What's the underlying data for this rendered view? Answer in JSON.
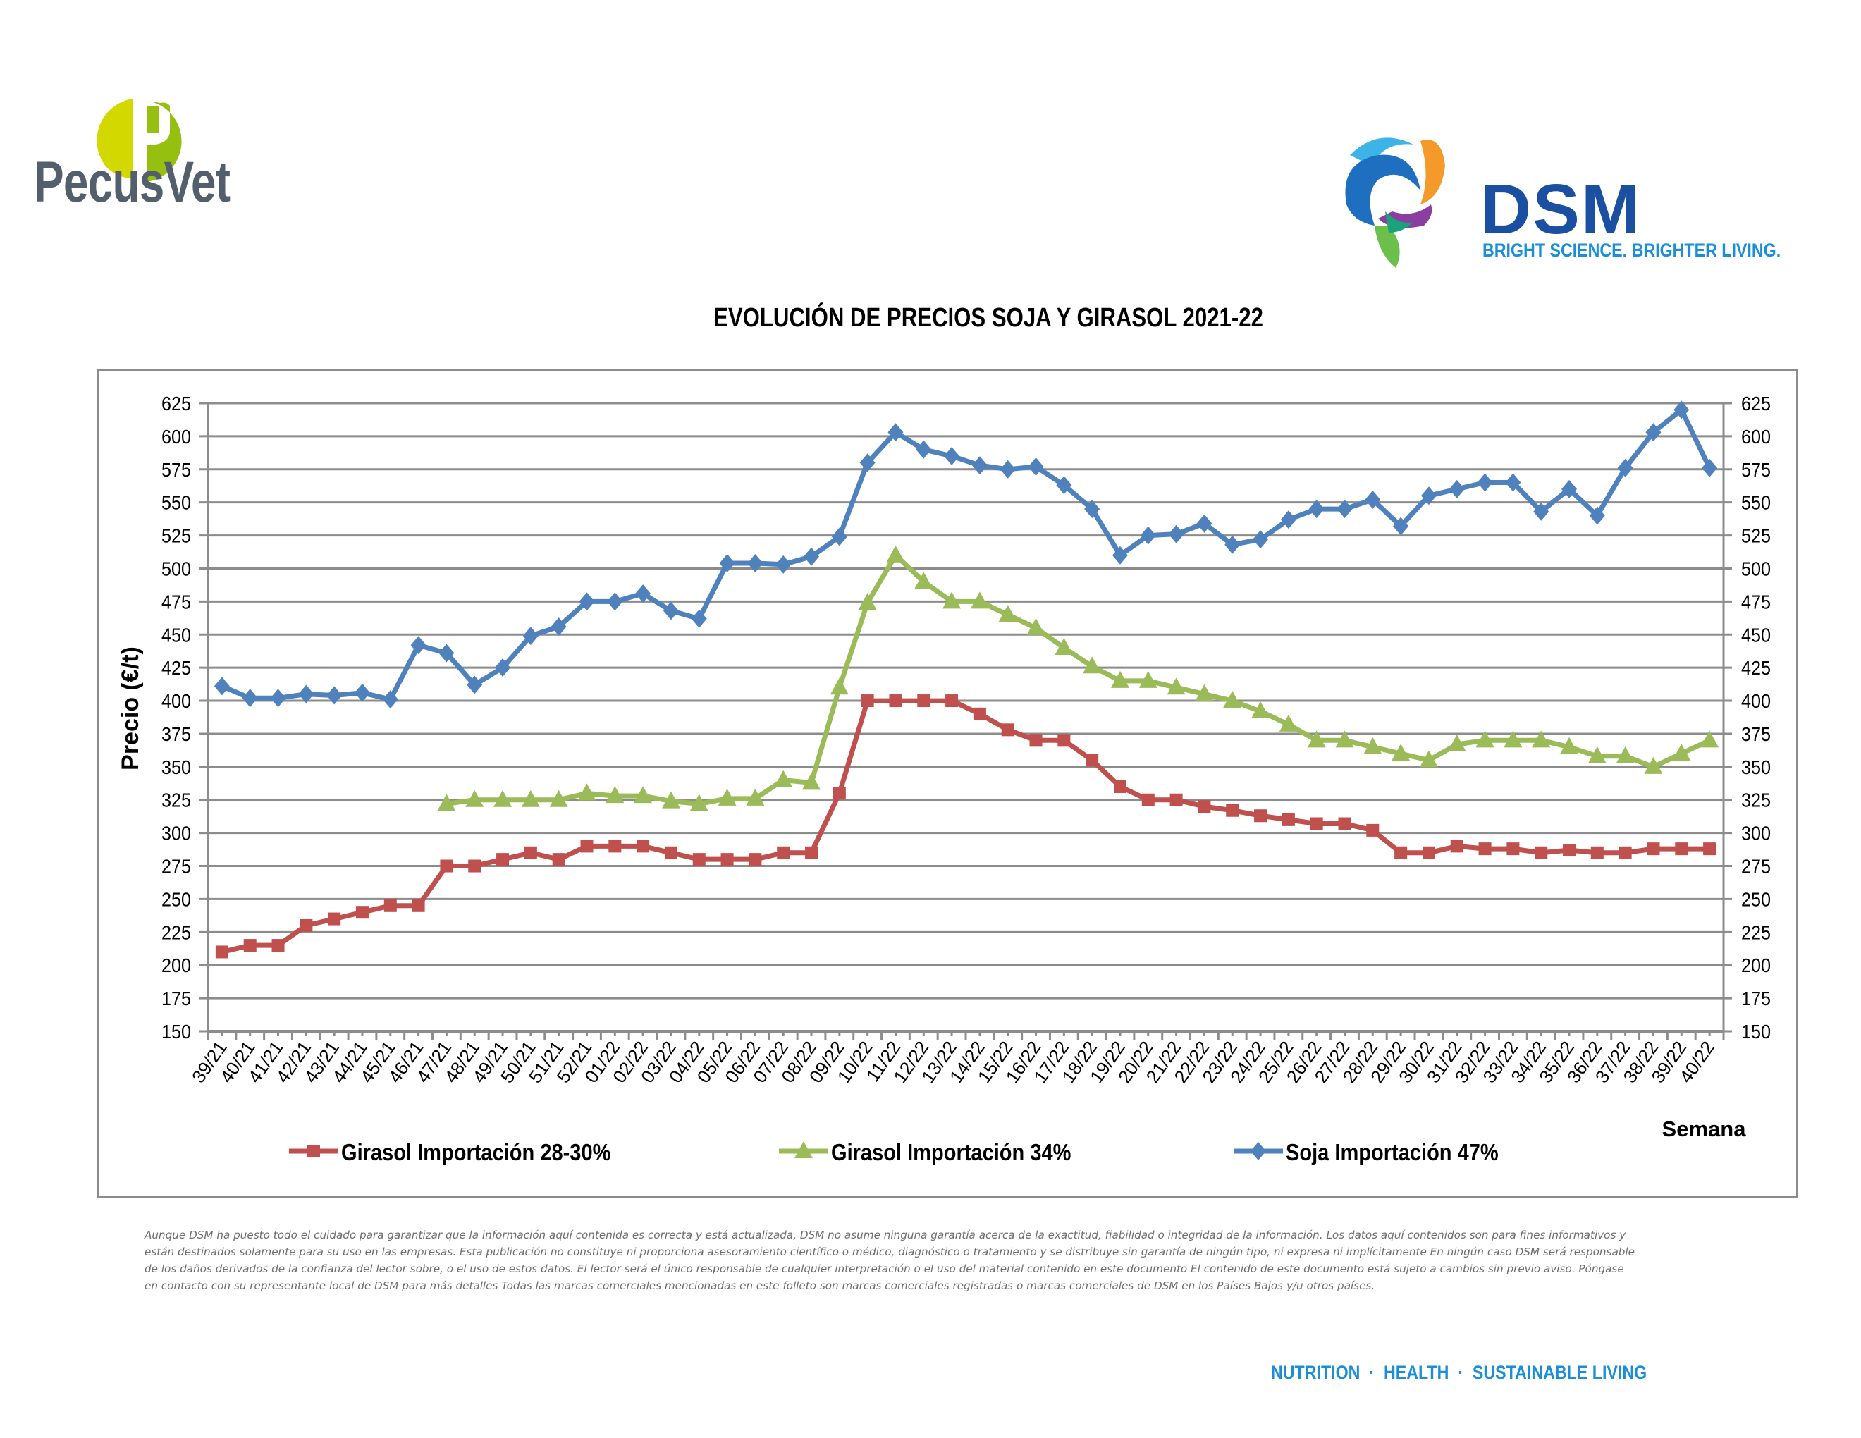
{
  "header": {
    "left_logo_text": "PecusVet",
    "right_logo_text": "DSM",
    "right_logo_tagline": "BRIGHT SCIENCE. BRIGHTER LIVING."
  },
  "colors": {
    "pecusvet_green_light": "#d3d800",
    "pecusvet_green": "#95c00f",
    "pecusvet_gray": "#535f6d",
    "dsm_blue": "#1b4fa1",
    "dsm_light_blue": "#1a8ed8",
    "series_red": "#c0504d",
    "series_green": "#9bbb59",
    "series_blue": "#4f81bd",
    "grid": "#8c8c8c"
  },
  "chart_data": {
    "type": "line",
    "title": "EVOLUCIÓN DE PRECIOS SOJA Y GIRASOL 2021-22",
    "xlabel": "Semana",
    "ylabel": "Precio (€/t)",
    "ylim": [
      150,
      625
    ],
    "yticks": [
      150,
      175,
      200,
      225,
      250,
      275,
      300,
      325,
      350,
      375,
      400,
      425,
      450,
      475,
      500,
      525,
      550,
      575,
      600,
      625
    ],
    "secondary_y_axis": true,
    "grid": true,
    "legend_position": "bottom",
    "categories": [
      "39/21",
      "40/21",
      "41/21",
      "42/21",
      "43/21",
      "44/21",
      "45/21",
      "46/21",
      "47/21",
      "48/21",
      "49/21",
      "50/21",
      "51/21",
      "52/21",
      "01/22",
      "02/22",
      "03/22",
      "04/22",
      "05/22",
      "06/22",
      "07/22",
      "08/22",
      "09/22",
      "10/22",
      "11/22",
      "12/22",
      "13/22",
      "14/22",
      "15/22",
      "16/22",
      "17/22",
      "18/22",
      "19/22",
      "20/22",
      "21/22",
      "22/22",
      "23/22",
      "24/22",
      "25/22",
      "26/22",
      "27/22",
      "28/22",
      "29/22",
      "30/22",
      "31/22",
      "32/22",
      "33/22",
      "34/22",
      "35/22",
      "36/22",
      "37/22",
      "38/22",
      "39/22",
      "40/22"
    ],
    "series": [
      {
        "name": "Girasol Importación 28-30%",
        "marker": "square",
        "color": "#c0504d",
        "values": [
          210,
          215,
          215,
          230,
          235,
          240,
          245,
          245,
          275,
          275,
          280,
          285,
          280,
          290,
          290,
          290,
          285,
          280,
          280,
          280,
          285,
          285,
          330,
          400,
          400,
          400,
          400,
          390,
          378,
          370,
          370,
          355,
          335,
          325,
          325,
          320,
          317,
          313,
          310,
          307,
          307,
          302,
          285,
          285,
          290,
          288,
          288,
          285,
          287,
          285,
          285,
          288,
          288,
          288
        ]
      },
      {
        "name": "Girasol Importación 34%",
        "marker": "triangle",
        "color": "#9bbb59",
        "values": [
          null,
          null,
          null,
          null,
          null,
          null,
          null,
          null,
          322,
          325,
          325,
          325,
          325,
          330,
          328,
          328,
          324,
          322,
          326,
          326,
          340,
          338,
          410,
          474,
          510,
          490,
          475,
          475,
          465,
          455,
          440,
          426,
          415,
          415,
          410,
          405,
          400,
          392,
          382,
          370,
          370,
          365,
          360,
          355,
          367,
          370,
          370,
          370,
          365,
          358,
          358,
          350,
          360,
          370
        ]
      },
      {
        "name": "Soja Importación 47%",
        "marker": "diamond",
        "color": "#4f81bd",
        "values": [
          411,
          402,
          402,
          405,
          404,
          406,
          401,
          442,
          436,
          412,
          425,
          449,
          456,
          475,
          475,
          481,
          468,
          462,
          504,
          504,
          503,
          509,
          524,
          580,
          603,
          590,
          585,
          578,
          575,
          577,
          563,
          545,
          510,
          525,
          526,
          534,
          518,
          522,
          537,
          545,
          545,
          552,
          532,
          555,
          560,
          565,
          565,
          543,
          560,
          540,
          576,
          603,
          620,
          576
        ]
      }
    ]
  },
  "disclaimer": "Aunque DSM ha puesto todo el cuidado para garantizar que la información aquí contenida es correcta y está actualizada, DSM no asume ninguna garantía acerca de la exactitud, fiabilidad o integridad de la información. Los datos aquí contenidos son para fines informativos y están destinados solamente para su uso en las empresas. Esta publicación no constituye ni proporciona asesoramiento científico o médico, diagnóstico o tratamiento y se distribuye sin garantía de ningún tipo, ni expresa ni implícitamente En ningún caso DSM será responsable de los daños derivados de la confianza del lector sobre, o el uso de estos datos. El lector será el único responsable de cualquier interpretación o el uso del material contenido en este documento El contenido de este documento está sujeto a cambios sin previo aviso. Póngase en contacto con su representante local de DSM para más detalles Todas las marcas comerciales mencionadas en este folleto son marcas comerciales registradas o marcas comerciales de DSM en los Países Bajos y/u otros países.",
  "footer": {
    "tagline": "NUTRITION  ·  HEALTH  ·  SUSTAINABLE LIVING"
  }
}
